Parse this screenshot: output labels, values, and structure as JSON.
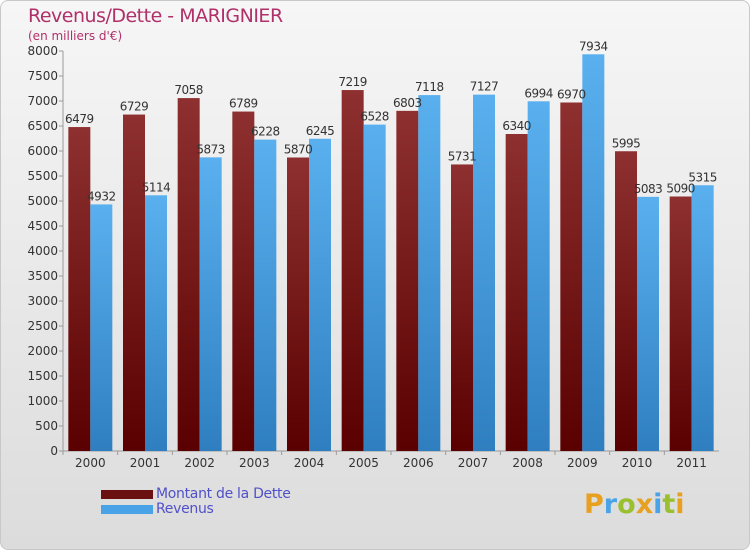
{
  "chart_data": {
    "type": "bar",
    "title": "Revenus/Dette - MARIGNIER",
    "subtitle": "(en milliers d'€)",
    "categories": [
      "2000",
      "2001",
      "2002",
      "2003",
      "2004",
      "2005",
      "2006",
      "2007",
      "2008",
      "2009",
      "2010",
      "2011"
    ],
    "series": [
      {
        "name": "Montant de la Dette",
        "color": "#8c2424",
        "values": [
          6479,
          6729,
          7058,
          6789,
          5870,
          7219,
          6803,
          5731,
          6340,
          6970,
          5995,
          5090
        ]
      },
      {
        "name": "Revenus",
        "color": "#4aa3e6",
        "values": [
          4932,
          5114,
          5873,
          6228,
          6245,
          6528,
          7118,
          7127,
          6994,
          7934,
          5083,
          5315
        ]
      }
    ],
    "ylim": [
      0,
      8000
    ],
    "yticks": [
      0,
      500,
      1000,
      1500,
      2000,
      2500,
      3000,
      3500,
      4000,
      4500,
      5000,
      5500,
      6000,
      6500,
      7000,
      7500,
      8000
    ],
    "grid": false,
    "legend_position": "bottom-left"
  },
  "logo_letters": [
    "P",
    "r",
    "o",
    "x",
    "i",
    "t",
    "i"
  ],
  "logo_colors": [
    "#e8a020",
    "#4aa3e6",
    "#9ac030",
    "#e8a020",
    "#4aa3e6",
    "#9ac030",
    "#e8a020"
  ]
}
